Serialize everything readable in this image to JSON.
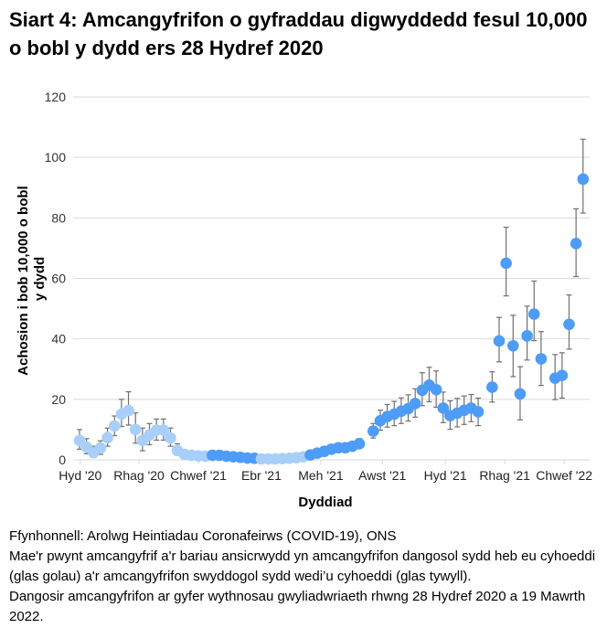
{
  "title": "Siart 4: Amcangyfrifon o gyfraddau digwyddedd fesul 10,000 o bobl y dydd ers 28 Hydref 2020",
  "chart_data": {
    "type": "scatter",
    "title": "Siart 4: Amcangyfrifon o gyfraddau digwyddedd fesul 10,000 o bobl y dydd ers 28 Hydref 2020",
    "xlabel": "Dyddiad",
    "ylabel": "Achosion i bob 10,000 o bobl y dydd",
    "ylim": [
      0,
      120
    ],
    "yticks": [
      0,
      20,
      40,
      60,
      80,
      100,
      120
    ],
    "xtick_labels": [
      "Hyd '20",
      "Rhag '20",
      "Chwef '21",
      "Ebr '21",
      "Meh '21",
      "Awst '21",
      "Hyd '21",
      "Rhag '21",
      "Chwef '22"
    ],
    "grid": "horizontal",
    "colors": {
      "unpublished": "#a8cffa",
      "published": "#4d9cf7",
      "error_bar": "#707070"
    },
    "points": [
      {
        "date": "2020-10-28",
        "value": 6.4,
        "lower": 3.5,
        "upper": 10,
        "published": false
      },
      {
        "date": "2020-11-04",
        "value": 4.2,
        "lower": 2,
        "upper": 7,
        "published": false
      },
      {
        "date": "2020-11-11",
        "value": 2.4,
        "lower": 0.8,
        "upper": 4.5,
        "published": false
      },
      {
        "date": "2020-11-18",
        "value": 3.9,
        "lower": 1.8,
        "upper": 6.3,
        "published": false
      },
      {
        "date": "2020-11-25",
        "value": 7.3,
        "lower": 4.5,
        "upper": 10.5,
        "published": false
      },
      {
        "date": "2020-12-02",
        "value": 11.2,
        "lower": 8,
        "upper": 14.5,
        "published": false
      },
      {
        "date": "2020-12-09",
        "value": 15.1,
        "lower": 11,
        "upper": 20,
        "published": false
      },
      {
        "date": "2020-12-16",
        "value": 16.3,
        "lower": 11.5,
        "upper": 22.5,
        "published": false
      },
      {
        "date": "2020-12-23",
        "value": 10.0,
        "lower": 5.5,
        "upper": 15.5,
        "published": false
      },
      {
        "date": "2020-12-30",
        "value": 6.4,
        "lower": 3,
        "upper": 10.5,
        "published": false
      },
      {
        "date": "2021-01-06",
        "value": 8.2,
        "lower": 5,
        "upper": 12
      },
      {
        "date": "2021-01-13",
        "value": 9.8,
        "lower": 6.5,
        "upper": 13.5,
        "published": false
      },
      {
        "date": "2021-01-20",
        "value": 9.8,
        "lower": 6.5,
        "upper": 13.5,
        "published": false
      },
      {
        "date": "2021-01-27",
        "value": 7.2,
        "lower": 4.5,
        "upper": 10.5,
        "published": false
      },
      {
        "date": "2021-02-03",
        "value": 3.1,
        "lower": 1.5,
        "upper": 5.3,
        "published": false
      },
      {
        "date": "2021-02-10",
        "value": 1.8,
        "lower": 0.8,
        "upper": 3.2,
        "published": false
      },
      {
        "date": "2021-02-17",
        "value": 1.5,
        "lower": 0.7,
        "upper": 2.6,
        "published": false
      },
      {
        "date": "2021-02-24",
        "value": 1.3,
        "lower": 0.6,
        "upper": 2.3,
        "published": false
      },
      {
        "date": "2021-03-03",
        "value": 1.2,
        "lower": 0.5,
        "upper": 2.1,
        "published": false
      },
      {
        "date": "2021-03-10",
        "value": 1.5,
        "lower": 0.8,
        "upper": 2.4,
        "published": true
      },
      {
        "date": "2021-03-17",
        "value": 1.5,
        "lower": 0.8,
        "upper": 2.4,
        "published": true
      },
      {
        "date": "2021-03-24",
        "value": 1.2,
        "lower": 0.6,
        "upper": 2,
        "published": true
      },
      {
        "date": "2021-03-31",
        "value": 1.0,
        "lower": 0.5,
        "upper": 1.7,
        "published": true
      },
      {
        "date": "2021-04-07",
        "value": 0.8,
        "lower": 0.4,
        "upper": 1.4,
        "published": true
      },
      {
        "date": "2021-04-14",
        "value": 0.6,
        "lower": 0.3,
        "upper": 1.1,
        "published": true
      },
      {
        "date": "2021-04-21",
        "value": 0.5,
        "lower": 0.2,
        "upper": 1,
        "published": true
      },
      {
        "date": "2021-04-28",
        "value": 0.3,
        "lower": 0.1,
        "upper": 0.7,
        "published": false
      },
      {
        "date": "2021-05-05",
        "value": 0.3,
        "lower": 0.1,
        "upper": 0.7,
        "published": false
      },
      {
        "date": "2021-05-12",
        "value": 0.3,
        "lower": 0.1,
        "upper": 0.7,
        "published": false
      },
      {
        "date": "2021-05-19",
        "value": 0.4,
        "lower": 0.1,
        "upper": 0.8,
        "published": false
      },
      {
        "date": "2021-05-26",
        "value": 0.5,
        "lower": 0.2,
        "upper": 1,
        "published": false
      },
      {
        "date": "2021-06-02",
        "value": 0.7,
        "lower": 0.3,
        "upper": 1.3,
        "published": false
      },
      {
        "date": "2021-06-09",
        "value": 1.0,
        "lower": 0.5,
        "upper": 1.7,
        "published": false
      },
      {
        "date": "2021-06-16",
        "value": 1.6,
        "lower": 0.9,
        "upper": 2.5,
        "published": true
      },
      {
        "date": "2021-06-23",
        "value": 2.2,
        "lower": 1.3,
        "upper": 3.2,
        "published": true
      },
      {
        "date": "2021-06-30",
        "value": 2.8,
        "lower": 1.8,
        "upper": 4,
        "published": true
      },
      {
        "date": "2021-07-07",
        "value": 3.5,
        "lower": 2.4,
        "upper": 4.8,
        "published": true
      },
      {
        "date": "2021-07-14",
        "value": 4.0,
        "lower": 2.8,
        "upper": 5.4,
        "published": true
      },
      {
        "date": "2021-07-21",
        "value": 4.0,
        "lower": 2.8,
        "upper": 5.4,
        "published": true
      },
      {
        "date": "2021-07-28",
        "value": 4.5,
        "lower": 3.2,
        "upper": 6,
        "published": true
      },
      {
        "date": "2021-08-04",
        "value": 5.3,
        "lower": 3.8,
        "upper": 7,
        "published": true
      },
      {
        "date": "2021-08-18",
        "value": 9.5,
        "lower": 7.2,
        "upper": 12,
        "published": true
      },
      {
        "date": "2021-08-25",
        "value": 12.9,
        "lower": 9.8,
        "upper": 16.4,
        "published": true
      },
      {
        "date": "2021-09-01",
        "value": 14.3,
        "lower": 10.8,
        "upper": 18.3,
        "published": true
      },
      {
        "date": "2021-09-08",
        "value": 15.1,
        "lower": 11.3,
        "upper": 19.3,
        "published": true
      },
      {
        "date": "2021-09-15",
        "value": 16.1,
        "lower": 12,
        "upper": 20.5,
        "published": true
      },
      {
        "date": "2021-09-22",
        "value": 16.9,
        "lower": 12.8,
        "upper": 21.5,
        "published": true
      },
      {
        "date": "2021-09-29",
        "value": 18.6,
        "lower": 14.1,
        "upper": 23.5,
        "published": true
      },
      {
        "date": "2021-10-06",
        "value": 23.0,
        "lower": 17.9,
        "upper": 28.8,
        "published": true
      },
      {
        "date": "2021-10-13",
        "value": 24.7,
        "lower": 19.2,
        "upper": 30.6,
        "published": true
      },
      {
        "date": "2021-10-20",
        "value": 23.2,
        "lower": 17.4,
        "upper": 29.4,
        "published": true
      },
      {
        "date": "2021-10-27",
        "value": 17.1,
        "lower": 12.3,
        "upper": 22.4,
        "published": true
      },
      {
        "date": "2021-11-03",
        "value": 14.6,
        "lower": 10.1,
        "upper": 19.5,
        "published": true
      },
      {
        "date": "2021-11-10",
        "value": 15.4,
        "lower": 10.9,
        "upper": 20.3,
        "published": true
      },
      {
        "date": "2021-11-17",
        "value": 16.4,
        "lower": 11.7,
        "upper": 21.1,
        "published": true
      },
      {
        "date": "2021-11-24",
        "value": 17.1,
        "lower": 12.6,
        "upper": 21.6,
        "published": true
      },
      {
        "date": "2021-12-01",
        "value": 15.9,
        "lower": 11.3,
        "upper": 20.4,
        "published": true
      },
      {
        "date": "2021-12-15",
        "value": 24.0,
        "lower": 19.1,
        "upper": 29.1,
        "published": true
      },
      {
        "date": "2021-12-22",
        "value": 39.3,
        "lower": 32.4,
        "upper": 47.1,
        "published": true
      },
      {
        "date": "2021-12-29",
        "value": 65.0,
        "lower": 54.2,
        "upper": 76.9,
        "published": true
      },
      {
        "date": "2022-01-05",
        "value": 37.7,
        "lower": 27.5,
        "upper": 47.8,
        "published": true
      },
      {
        "date": "2022-01-12",
        "value": 21.8,
        "lower": 13.2,
        "upper": 30.8,
        "published": true
      },
      {
        "date": "2022-01-19",
        "value": 41.0,
        "lower": 33.0,
        "upper": 50.8,
        "published": true
      },
      {
        "date": "2022-01-26",
        "value": 48.2,
        "lower": 39.4,
        "upper": 59.1,
        "published": true
      },
      {
        "date": "2022-02-02",
        "value": 33.4,
        "lower": 24.6,
        "upper": 42.4,
        "published": true
      },
      {
        "date": "2022-02-16",
        "value": 27.0,
        "lower": 19.9,
        "upper": 34.8,
        "published": true
      },
      {
        "date": "2022-02-23",
        "value": 27.9,
        "lower": 20.4,
        "upper": 35.4,
        "published": true
      },
      {
        "date": "2022-03-02",
        "value": 44.8,
        "lower": 36.6,
        "upper": 54.5,
        "published": true
      },
      {
        "date": "2022-03-09",
        "value": 71.5,
        "lower": 60.6,
        "upper": 83.0,
        "published": true
      },
      {
        "date": "2022-03-16",
        "value": 92.8,
        "lower": 81.6,
        "upper": 106.0,
        "published": true
      }
    ]
  },
  "footer": {
    "source": "Ffynhonnell: Arolwg Heintiadau Coronafeirws (COVID-19), ONS",
    "note1": "Mae'r pwynt amcangyfrif a'r bariau ansicrwydd yn amcangyfrifon dangosol sydd heb eu cyhoeddi (glas golau) a'r amcangyfrifon swyddogol sydd wedi’u cyhoeddi (glas tywyll).",
    "note2": "Dangosir amcangyfrifon ar gyfer wythnosau gwyliadwriaeth rhwng 28 Hydref 2020 a 19 Mawrth 2022."
  }
}
